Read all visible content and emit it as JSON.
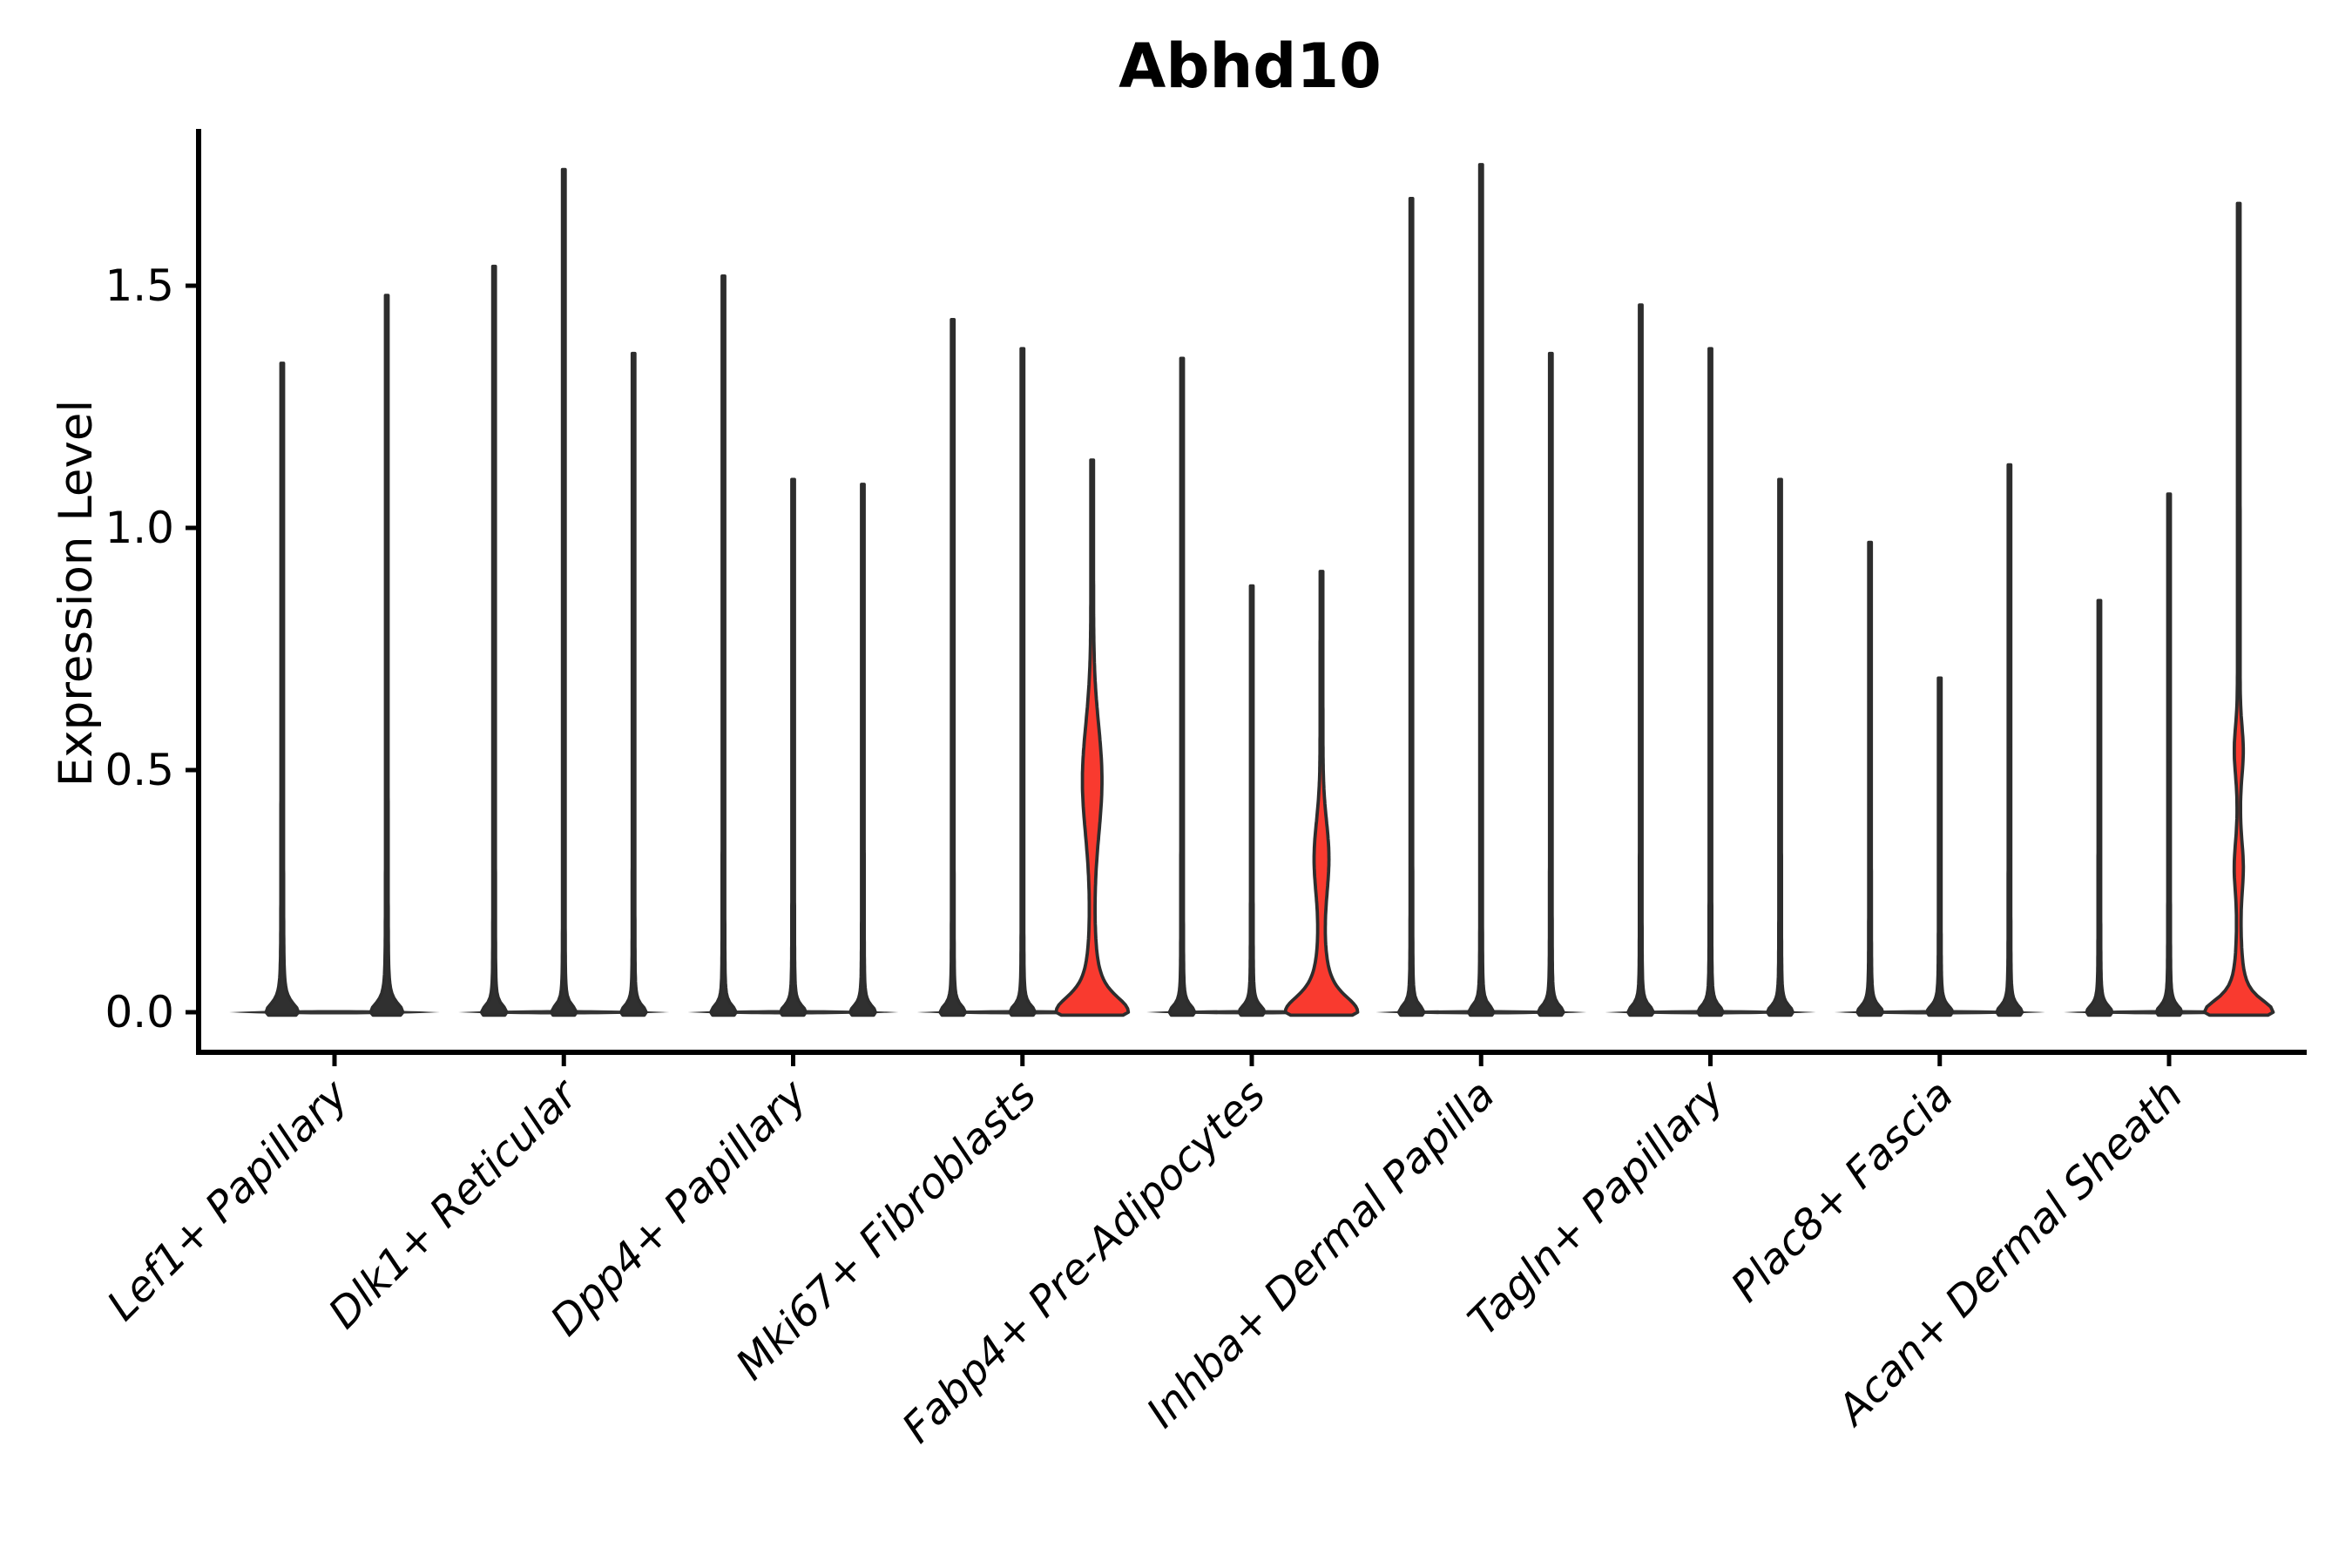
{
  "figure": {
    "title": "Abhd10",
    "ylabel": "Expression Level"
  },
  "chart_data": {
    "type": "violin",
    "title": "Abhd10",
    "xlabel": "",
    "ylabel": "Expression Level",
    "ylim": [
      -0.085,
      1.82
    ],
    "yticks": [
      0.0,
      0.5,
      1.0,
      1.5
    ],
    "ytick_labels": [
      "0.0",
      "0.5",
      "1.0",
      "1.5"
    ],
    "grid": false,
    "legend": false,
    "colors": {
      "highlight_fill": "#f93a2f",
      "violin_line": "#2d2d2d",
      "axis": "#000000",
      "text": "#000000",
      "background": "#ffffff"
    },
    "categories": [
      "Lef1+ Papillary",
      "Dlk1+ Reticular",
      "Dpp4+ Papillary",
      "Mki67+ Fibroblasts",
      "Fabp4+ Pre-Adipocytes",
      "Inhba+ Dermal Papilla",
      "Tagln+ Papillary",
      "Plac8+ Fascia",
      "Acan+ Dermal Sheath"
    ],
    "groups": [
      {
        "label": "Lef1+ Papillary",
        "violins": [
          {
            "offset": -0.228,
            "max": 1.34,
            "highlighted": false,
            "flare_amp": 17,
            "flare_w": 0.024,
            "bulges": [],
            "points": []
          },
          {
            "offset": 0.228,
            "max": 1.48,
            "highlighted": false,
            "flare_amp": 17,
            "flare_w": 0.024,
            "bulges": [],
            "points": []
          }
        ]
      },
      {
        "label": "Dlk1+ Reticular",
        "violins": [
          {
            "offset": -0.304,
            "max": 1.54,
            "highlighted": false,
            "flare_amp": 13,
            "flare_w": 0.018,
            "bulges": [],
            "points": []
          },
          {
            "offset": 0.0,
            "max": 1.74,
            "highlighted": false,
            "flare_amp": 13,
            "flare_w": 0.018,
            "bulges": [],
            "points": []
          },
          {
            "offset": 0.304,
            "max": 1.36,
            "highlighted": false,
            "flare_amp": 13,
            "flare_w": 0.018,
            "bulges": [],
            "points": []
          }
        ]
      },
      {
        "label": "Dpp4+ Papillary",
        "violins": [
          {
            "offset": -0.304,
            "max": 1.52,
            "highlighted": false,
            "flare_amp": 13,
            "flare_w": 0.018,
            "bulges": [],
            "points": []
          },
          {
            "offset": 0.0,
            "max": 1.1,
            "highlighted": false,
            "flare_amp": 13,
            "flare_w": 0.018,
            "bulges": [],
            "points": []
          },
          {
            "offset": 0.304,
            "max": 1.09,
            "highlighted": false,
            "flare_amp": 13,
            "flare_w": 0.018,
            "bulges": [],
            "points": []
          }
        ]
      },
      {
        "label": "Mki67+ Fibroblasts",
        "violins": [
          {
            "offset": -0.304,
            "max": 1.43,
            "highlighted": false,
            "flare_amp": 13,
            "flare_w": 0.018,
            "bulges": [],
            "points": []
          },
          {
            "offset": 0.0,
            "max": 1.37,
            "highlighted": false,
            "flare_amp": 13,
            "flare_w": 0.018,
            "bulges": [],
            "points": []
          },
          {
            "offset": 0.304,
            "max": 1.14,
            "highlighted": true,
            "flare_amp": 40,
            "flare_w": 0.045,
            "bulges": [
              {
                "center": 0.48,
                "amp": 9.5,
                "w": 0.16
              }
            ],
            "points": []
          }
        ]
      },
      {
        "label": "Fabp4+ Pre-Adipocytes",
        "violins": [
          {
            "offset": -0.304,
            "max": 1.35,
            "highlighted": false,
            "flare_amp": 13,
            "flare_w": 0.018,
            "bulges": [],
            "points": []
          },
          {
            "offset": 0.0,
            "max": 0.88,
            "highlighted": false,
            "flare_amp": 13,
            "flare_w": 0.018,
            "bulges": [],
            "points": []
          },
          {
            "offset": 0.304,
            "max": 0.91,
            "highlighted": true,
            "flare_amp": 40,
            "flare_w": 0.045,
            "bulges": [
              {
                "center": 0.32,
                "amp": 6.5,
                "w": 0.105
              }
            ],
            "points": []
          }
        ]
      },
      {
        "label": "Inhba+ Dermal Papilla",
        "violins": [
          {
            "offset": -0.304,
            "max": 1.68,
            "highlighted": false,
            "flare_amp": 13,
            "flare_w": 0.018,
            "bulges": [],
            "points": []
          },
          {
            "offset": 0.0,
            "max": 1.75,
            "highlighted": false,
            "flare_amp": 13,
            "flare_w": 0.018,
            "bulges": [],
            "points": []
          },
          {
            "offset": 0.304,
            "max": 1.36,
            "highlighted": false,
            "flare_amp": 13,
            "flare_w": 0.018,
            "bulges": [],
            "points": []
          }
        ]
      },
      {
        "label": "Tagln+ Papillary",
        "violins": [
          {
            "offset": -0.304,
            "max": 1.46,
            "highlighted": false,
            "flare_amp": 13,
            "flare_w": 0.018,
            "bulges": [],
            "points": []
          },
          {
            "offset": 0.0,
            "max": 1.37,
            "highlighted": false,
            "flare_amp": 13,
            "flare_w": 0.018,
            "bulges": [],
            "points": []
          },
          {
            "offset": 0.304,
            "max": 1.1,
            "highlighted": false,
            "flare_amp": 13,
            "flare_w": 0.018,
            "bulges": [],
            "points": []
          }
        ]
      },
      {
        "label": "Plac8+ Fascia",
        "violins": [
          {
            "offset": -0.304,
            "max": 0.97,
            "highlighted": false,
            "flare_amp": 13,
            "flare_w": 0.018,
            "bulges": [],
            "points": [
              0.84,
              0.64,
              0.43
            ]
          },
          {
            "offset": 0.0,
            "max": 0.69,
            "highlighted": false,
            "flare_amp": 13,
            "flare_w": 0.018,
            "bulges": [],
            "points": [
              0.3
            ]
          },
          {
            "offset": 0.304,
            "max": 1.13,
            "highlighted": false,
            "flare_amp": 13,
            "flare_w": 0.018,
            "bulges": [],
            "points": [
              0.55,
              0.32
            ]
          }
        ]
      },
      {
        "label": "Acan+ Dermal Sheath",
        "violins": [
          {
            "offset": -0.304,
            "max": 0.85,
            "highlighted": false,
            "flare_amp": 13,
            "flare_w": 0.018,
            "bulges": [],
            "points": [
              0.34,
              0.3,
              0.27
            ]
          },
          {
            "offset": 0.0,
            "max": 1.07,
            "highlighted": false,
            "flare_amp": 13,
            "flare_w": 0.018,
            "bulges": [],
            "points": [
              0.52,
              0.49,
              0.3
            ]
          },
          {
            "offset": 0.304,
            "max": 1.67,
            "highlighted": true,
            "flare_amp": 38,
            "flare_w": 0.035,
            "bulges": [
              {
                "center": 0.54,
                "amp": 3.6,
                "w": 0.07
              },
              {
                "center": 0.3,
                "amp": 3.4,
                "w": 0.07
              }
            ],
            "points": []
          }
        ]
      }
    ]
  }
}
